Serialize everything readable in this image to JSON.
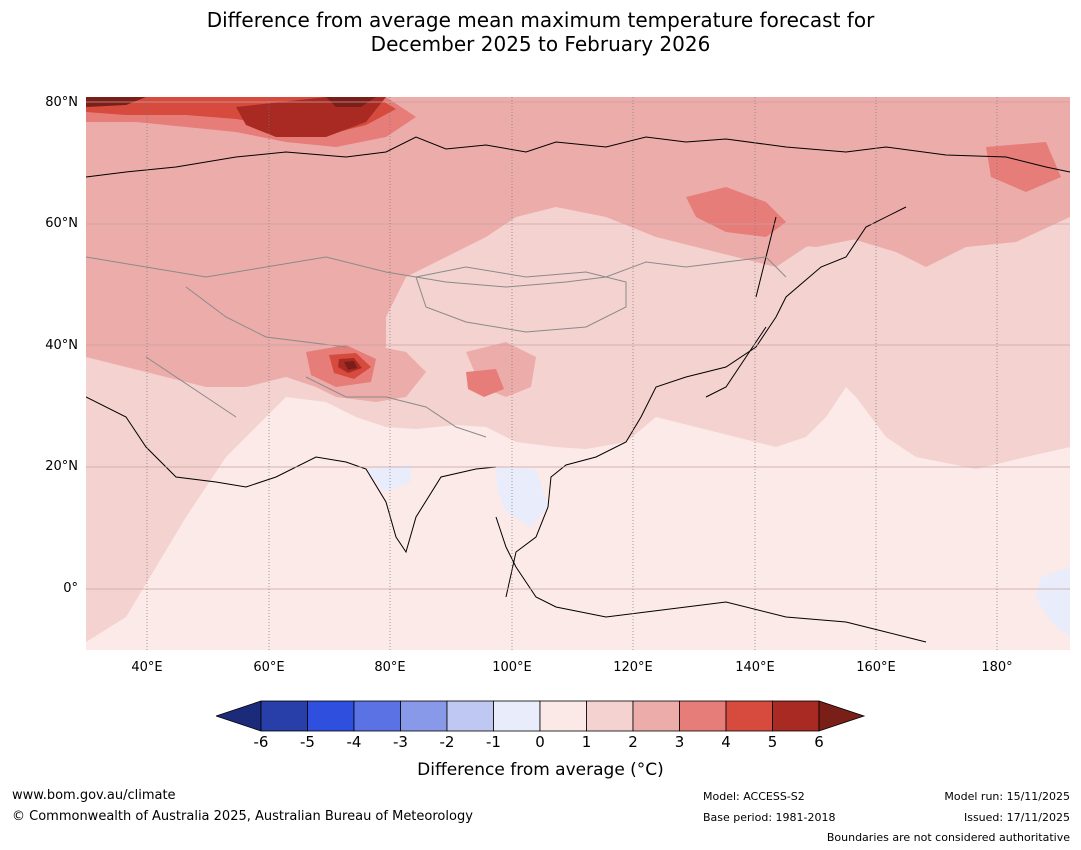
{
  "title": {
    "line1": "Difference from average mean maximum temperature forecast for",
    "line2": "December 2025 to February 2026"
  },
  "map": {
    "lat_labels": [
      "80°N",
      "60°N",
      "40°N",
      "20°N",
      "0°"
    ],
    "lon_labels": [
      "40°E",
      "60°E",
      "80°E",
      "100°E",
      "120°E",
      "140°E",
      "160°E",
      "180°"
    ],
    "extent": {
      "lon": [
        30,
        192
      ],
      "lat": [
        -10,
        80
      ]
    }
  },
  "colorbar": {
    "ticks": [
      "-6",
      "-5",
      "-4",
      "-3",
      "-2",
      "-1",
      "0",
      "1",
      "2",
      "3",
      "4",
      "5",
      "6"
    ],
    "colors": [
      "#1c2a7a",
      "#283ea8",
      "#2f4fde",
      "#5b72e4",
      "#8899ea",
      "#bfc8f3",
      "#e8ecfb",
      "#fbe9e8",
      "#f4d2d0",
      "#ecacaa",
      "#e67d78",
      "#d64b3e",
      "#a92a22",
      "#7a1e18"
    ],
    "label": "Difference from average (°C)"
  },
  "footer": {
    "url": "www.bom.gov.au/climate",
    "copyright": "© Commonwealth of Australia 2025, Australian Bureau of Meteorology",
    "model": "Model: ACCESS-S2",
    "base_period": "Base period: 1981-2018",
    "model_run": "Model run: 15/11/2025",
    "issued": "Issued: 17/11/2025",
    "disclaimer": "Boundaries are not considered authoritative"
  }
}
